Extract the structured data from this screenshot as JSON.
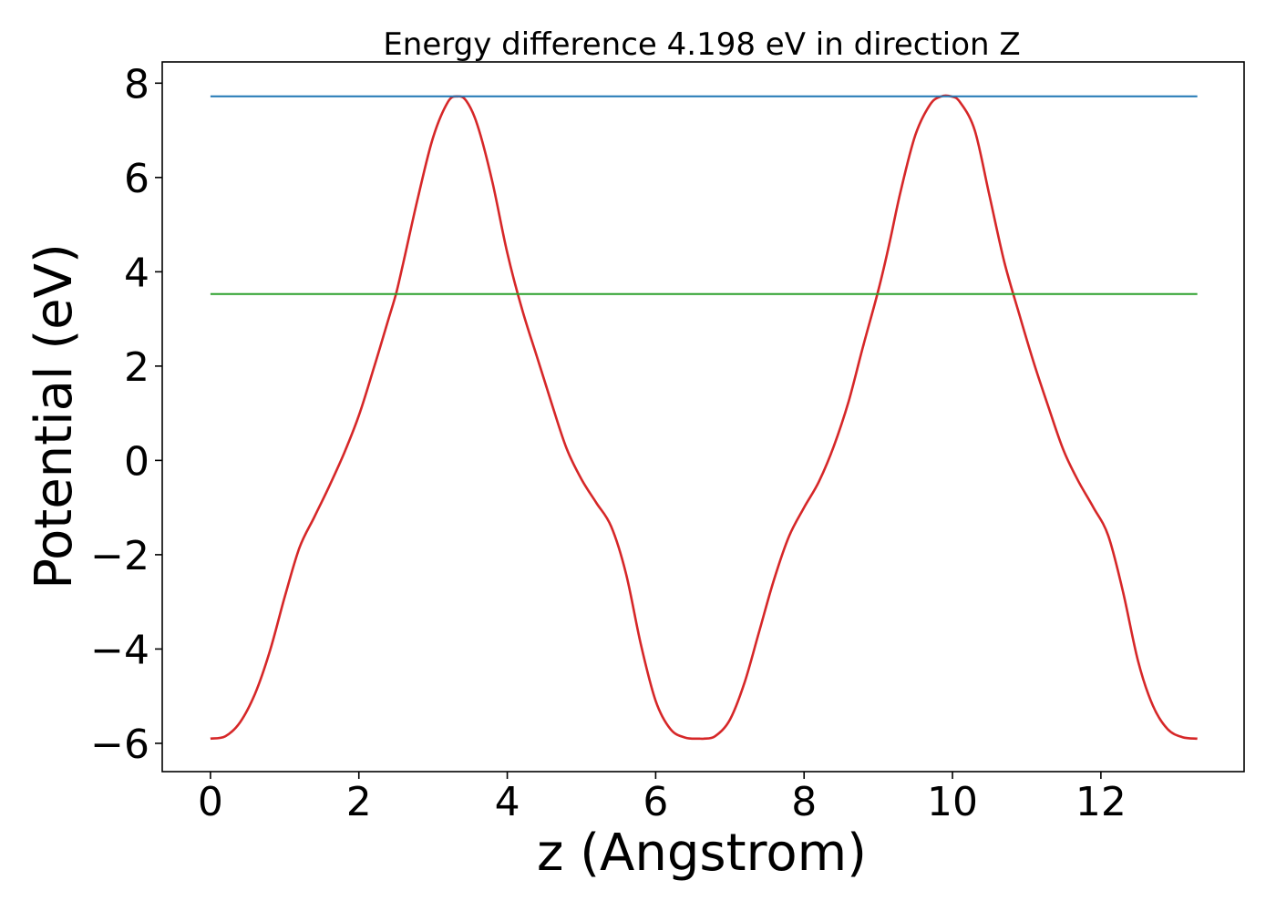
{
  "chart_data": {
    "type": "line",
    "title": "Energy difference 4.198 eV in direction Z",
    "xlabel": "z (Angstrom)",
    "ylabel": "Potential (eV)",
    "xlim": [
      -0.65,
      13.93
    ],
    "ylim": [
      -6.6,
      8.45
    ],
    "grid": false,
    "x_ticks": [
      0,
      2,
      4,
      6,
      8,
      10,
      12
    ],
    "x_tick_labels": [
      "0",
      "2",
      "4",
      "6",
      "8",
      "10",
      "12"
    ],
    "y_ticks": [
      -6,
      -4,
      -2,
      0,
      2,
      4,
      6,
      8
    ],
    "y_tick_labels": [
      "−6",
      "−4",
      "−2",
      "0",
      "2",
      "4",
      "6",
      "8"
    ],
    "series": [
      {
        "color": "#d62728",
        "x": [
          0.0,
          0.2,
          0.4,
          0.6,
          0.8,
          1.0,
          1.2,
          1.4,
          1.6,
          1.8,
          2.0,
          2.2,
          2.4,
          2.5,
          2.6,
          2.8,
          3.0,
          3.2,
          3.33,
          3.45,
          3.6,
          3.8,
          4.0,
          4.2,
          4.4,
          4.6,
          4.8,
          5.0,
          5.2,
          5.4,
          5.6,
          5.8,
          6.0,
          6.2,
          6.4,
          6.6,
          6.65,
          6.8,
          7.0,
          7.2,
          7.4,
          7.6,
          7.8,
          8.0,
          8.2,
          8.4,
          8.6,
          8.8,
          9.0,
          9.15,
          9.3,
          9.5,
          9.7,
          9.85,
          9.98,
          10.1,
          10.3,
          10.5,
          10.7,
          10.9,
          11.1,
          11.3,
          11.5,
          11.7,
          11.9,
          12.1,
          12.3,
          12.5,
          12.7,
          12.9,
          13.1,
          13.3
        ],
        "y": [
          -5.9,
          -5.85,
          -5.55,
          -4.95,
          -4.05,
          -2.9,
          -1.85,
          -1.2,
          -0.55,
          0.15,
          0.95,
          1.95,
          3.0,
          3.53,
          4.2,
          5.6,
          6.85,
          7.6,
          7.72,
          7.62,
          7.1,
          5.9,
          4.4,
          3.2,
          2.2,
          1.2,
          0.25,
          -0.4,
          -0.9,
          -1.4,
          -2.4,
          -3.9,
          -5.1,
          -5.7,
          -5.88,
          -5.9,
          -5.9,
          -5.85,
          -5.5,
          -4.7,
          -3.6,
          -2.5,
          -1.6,
          -1.0,
          -0.45,
          0.3,
          1.25,
          2.45,
          3.6,
          4.6,
          5.7,
          6.9,
          7.55,
          7.72,
          7.72,
          7.6,
          7.0,
          5.6,
          4.2,
          3.1,
          2.05,
          1.1,
          0.2,
          -0.45,
          -1.0,
          -1.6,
          -2.8,
          -4.25,
          -5.2,
          -5.7,
          -5.87,
          -5.9
        ]
      },
      {
        "color": "#1f77b4",
        "x": [
          0.0,
          13.3
        ],
        "y": [
          7.72,
          7.72
        ]
      },
      {
        "color": "#2ca02c",
        "x": [
          0.0,
          13.3
        ],
        "y": [
          3.53,
          3.53
        ]
      }
    ]
  }
}
